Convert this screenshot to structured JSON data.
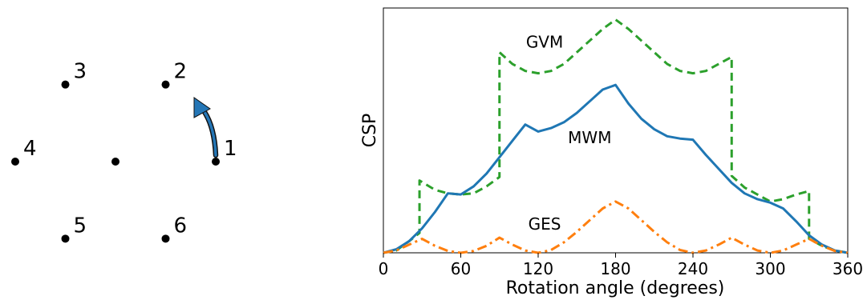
{
  "diagram": {
    "center_point": {
      "x": 0,
      "y": 0
    },
    "points": [
      {
        "label": "1",
        "x": 1.0,
        "y": 0.0
      },
      {
        "label": "2",
        "x": 0.5,
        "y": 0.866
      },
      {
        "label": "3",
        "x": -0.5,
        "y": 0.866
      },
      {
        "label": "4",
        "x": -1.0,
        "y": 0.0
      },
      {
        "label": "5",
        "x": -0.5,
        "y": -0.866
      },
      {
        "label": "6",
        "x": 0.5,
        "y": -0.866
      }
    ],
    "arrow": {
      "from": "1",
      "toward": "2",
      "color": "#2476b6"
    }
  },
  "chart_data": {
    "type": "line",
    "title": "",
    "xlabel": "Rotation angle (degrees)",
    "ylabel": "CSP",
    "xlim": [
      0,
      360
    ],
    "ylim": [
      0,
      1.05
    ],
    "xticks": [
      0,
      60,
      120,
      180,
      240,
      300,
      360
    ],
    "yticks_shown": false,
    "grid": false,
    "series": [
      {
        "name": "GVM",
        "color": "#2ca02c",
        "style": "dashed",
        "x": [
          0,
          10,
          20,
          28,
          28.01,
          40,
          50,
          60,
          70,
          80,
          90,
          90.01,
          100,
          110,
          120,
          130,
          140,
          150,
          160,
          170,
          180,
          190,
          200,
          210,
          220,
          230,
          240,
          250,
          260,
          270,
          270.01,
          280,
          290,
          300,
          310,
          320,
          330,
          330.01,
          340,
          350,
          360
        ],
        "y": [
          0.0,
          0.01,
          0.05,
          0.085,
          0.31,
          0.27,
          0.255,
          0.25,
          0.255,
          0.285,
          0.325,
          0.86,
          0.81,
          0.78,
          0.77,
          0.78,
          0.81,
          0.86,
          0.91,
          0.96,
          1.0,
          0.96,
          0.91,
          0.86,
          0.81,
          0.78,
          0.77,
          0.78,
          0.81,
          0.84,
          0.33,
          0.28,
          0.25,
          0.22,
          0.23,
          0.25,
          0.265,
          0.06,
          0.03,
          0.01,
          0.0
        ]
      },
      {
        "name": "MWM",
        "color": "#1f77b4",
        "style": "solid",
        "x": [
          0,
          10,
          20,
          30,
          40,
          50,
          60,
          70,
          80,
          90,
          100,
          110,
          120,
          130,
          140,
          150,
          160,
          170,
          180,
          190,
          200,
          210,
          220,
          230,
          240,
          250,
          260,
          270,
          280,
          290,
          300,
          310,
          320,
          330,
          340,
          350,
          360
        ],
        "y": [
          0.0,
          0.015,
          0.05,
          0.105,
          0.175,
          0.255,
          0.25,
          0.285,
          0.34,
          0.41,
          0.48,
          0.55,
          0.52,
          0.535,
          0.56,
          0.6,
          0.65,
          0.7,
          0.72,
          0.64,
          0.575,
          0.53,
          0.5,
          0.49,
          0.485,
          0.42,
          0.36,
          0.3,
          0.255,
          0.23,
          0.215,
          0.19,
          0.135,
          0.075,
          0.035,
          0.01,
          0.0
        ]
      },
      {
        "name": "GES",
        "color": "#ff7f0e",
        "style": "dashdot",
        "x": [
          0,
          10,
          20,
          30,
          40,
          50,
          60,
          70,
          80,
          90,
          100,
          110,
          120,
          130,
          140,
          150,
          160,
          170,
          180,
          190,
          200,
          210,
          220,
          230,
          240,
          250,
          260,
          270,
          280,
          290,
          300,
          310,
          320,
          330,
          340,
          350,
          360
        ],
        "y": [
          0.0,
          0.01,
          0.035,
          0.06,
          0.03,
          0.008,
          0.0,
          0.008,
          0.03,
          0.065,
          0.035,
          0.01,
          0.0,
          0.012,
          0.045,
          0.09,
          0.14,
          0.19,
          0.22,
          0.19,
          0.14,
          0.09,
          0.045,
          0.012,
          0.0,
          0.01,
          0.035,
          0.065,
          0.035,
          0.01,
          0.0,
          0.01,
          0.035,
          0.06,
          0.03,
          0.008,
          0.0
        ]
      }
    ],
    "annotations": [
      {
        "text": "GVM",
        "x": 125,
        "y": 0.88
      },
      {
        "text": "MWM",
        "x": 160,
        "y": 0.47
      },
      {
        "text": "GES",
        "x": 125,
        "y": 0.1
      }
    ]
  }
}
